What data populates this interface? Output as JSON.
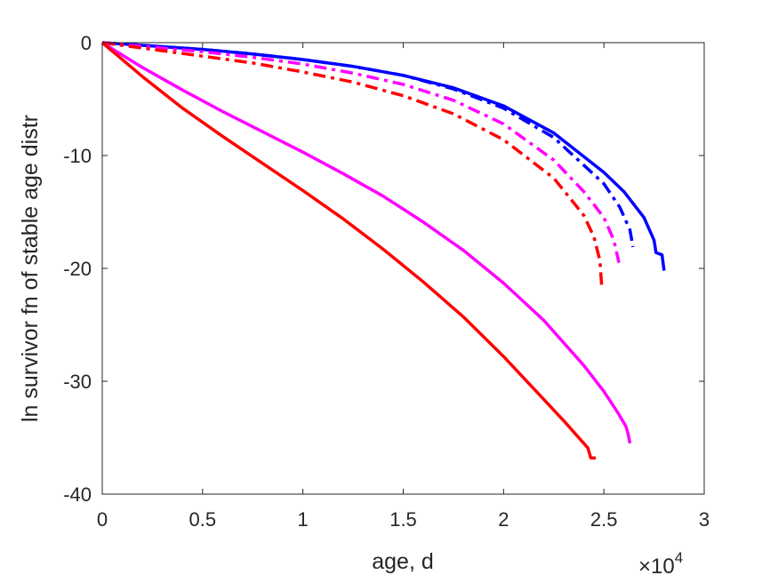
{
  "chart_data": {
    "type": "line",
    "xlabel": "age, d",
    "ylabel": "ln survivor fn of stable age distr",
    "x_multiplier": "×10",
    "x_multiplier_exp": "4",
    "xlim": [
      0,
      30000
    ],
    "ylim": [
      -40,
      0
    ],
    "xticks": [
      0,
      5000,
      10000,
      15000,
      20000,
      25000,
      30000
    ],
    "xtick_labels": [
      "0",
      "0.5",
      "1",
      "1.5",
      "2",
      "2.5",
      "3"
    ],
    "yticks": [
      0,
      -10,
      -20,
      -30,
      -40
    ],
    "ytick_labels": [
      "0",
      "-10",
      "-20",
      "-30",
      "-40"
    ],
    "grid": false,
    "series": [
      {
        "color": "#0000ff",
        "style": "solid",
        "x": [
          0,
          2500,
          5000,
          7500,
          10000,
          12500,
          15000,
          17500,
          20000,
          22500,
          25000,
          26000,
          27000,
          27500,
          27600,
          27900,
          27950,
          28000
        ],
        "y": [
          0,
          -0.3,
          -0.6,
          -1.0,
          -1.5,
          -2.1,
          -2.9,
          -4.0,
          -5.6,
          -8.0,
          -11.5,
          -13.2,
          -15.5,
          -17.5,
          -18.6,
          -18.8,
          -19.5,
          -20.2
        ]
      },
      {
        "color": "#0000ff",
        "style": "dashdot",
        "x": [
          0,
          2500,
          5000,
          7500,
          10000,
          12500,
          15000,
          17500,
          20000,
          22500,
          25000,
          25800,
          26300,
          26450
        ],
        "y": [
          0,
          -0.3,
          -0.6,
          -1.0,
          -1.5,
          -2.1,
          -2.9,
          -4.1,
          -5.8,
          -8.4,
          -12.5,
          -14.6,
          -16.6,
          -18.1
        ]
      },
      {
        "color": "#ff00ff",
        "style": "dashdot",
        "x": [
          0,
          2500,
          5000,
          7500,
          10000,
          12500,
          15000,
          17500,
          20000,
          22500,
          24000,
          25000,
          25500,
          25750
        ],
        "y": [
          0,
          -0.4,
          -0.8,
          -1.3,
          -1.9,
          -2.7,
          -3.7,
          -5.1,
          -7.2,
          -10.4,
          -13.2,
          -15.5,
          -17.5,
          -19.5
        ]
      },
      {
        "color": "#ff0000",
        "style": "dashdot",
        "x": [
          0,
          2500,
          5000,
          7500,
          10000,
          12500,
          15000,
          17500,
          20000,
          22500,
          24000,
          24500,
          24800,
          24900
        ],
        "y": [
          0,
          -0.6,
          -1.2,
          -1.8,
          -2.6,
          -3.5,
          -4.7,
          -6.3,
          -8.6,
          -12.0,
          -15.3,
          -17.2,
          -19.3,
          -21.8
        ]
      },
      {
        "color": "#ff00ff",
        "style": "solid",
        "x": [
          0,
          2000,
          4000,
          6000,
          8000,
          10000,
          12000,
          14000,
          16000,
          18000,
          20000,
          22000,
          24000,
          25000,
          25700,
          26100,
          26200,
          26300
        ],
        "y": [
          0,
          -2.2,
          -4.2,
          -6.1,
          -7.9,
          -9.7,
          -11.6,
          -13.6,
          -15.9,
          -18.4,
          -21.3,
          -24.6,
          -28.6,
          -30.9,
          -32.8,
          -34.0,
          -34.6,
          -35.5
        ]
      },
      {
        "color": "#ff0000",
        "style": "solid",
        "x": [
          0,
          2000,
          4000,
          6000,
          8000,
          10000,
          12000,
          14000,
          16000,
          18000,
          20000,
          21000,
          22000,
          23000,
          23800,
          24200,
          24300,
          24350,
          24600
        ],
        "y": [
          0,
          -3.0,
          -5.8,
          -8.3,
          -10.7,
          -13.1,
          -15.6,
          -18.3,
          -21.2,
          -24.3,
          -27.8,
          -29.7,
          -31.6,
          -33.5,
          -35.1,
          -35.9,
          -36.5,
          -36.8,
          -36.8
        ]
      }
    ]
  }
}
